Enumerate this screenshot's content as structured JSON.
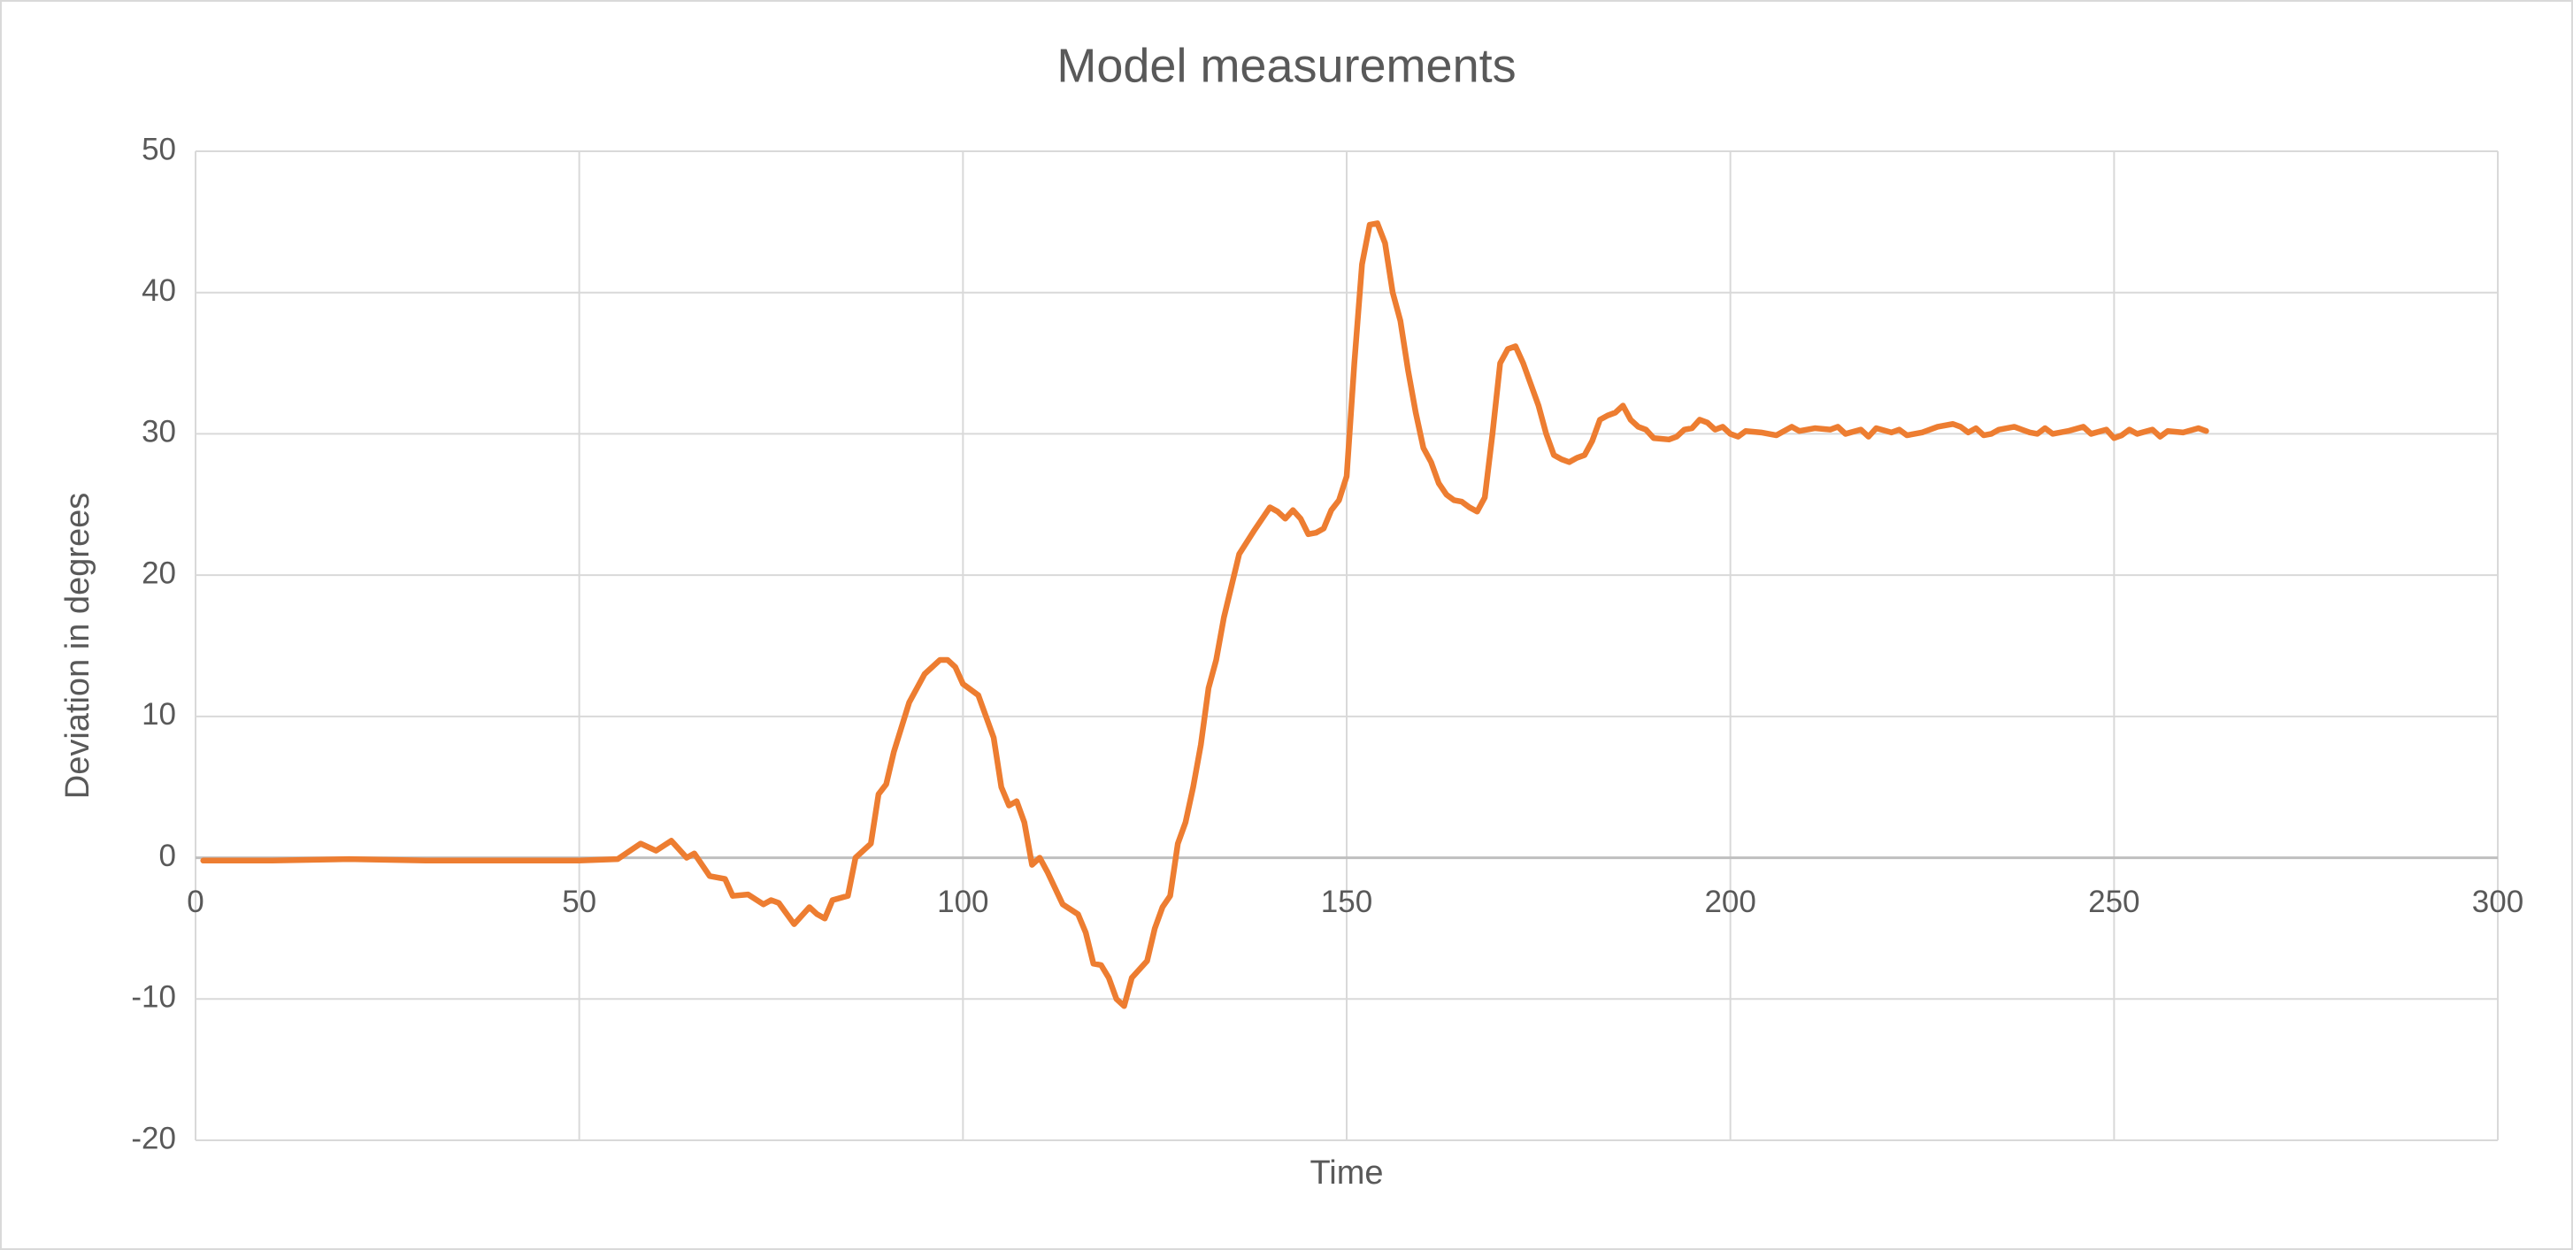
{
  "chart_data": {
    "type": "line",
    "title": "Model measurements",
    "x_label": "Time",
    "y_label": "Deviation in degrees",
    "color": "#ed7d31",
    "grid": true,
    "xlim": [
      0,
      300
    ],
    "xticks": [
      0,
      50,
      100,
      150,
      200,
      250,
      300
    ],
    "ylim": [
      -20,
      50
    ],
    "yticks": [
      -20,
      -10,
      0,
      10,
      20,
      30,
      40,
      50
    ],
    "x": [
      1,
      10,
      20,
      30,
      40,
      50,
      55,
      58,
      60,
      62,
      64,
      65,
      67,
      68,
      69,
      70,
      72,
      74,
      75,
      76,
      78,
      80,
      81,
      82,
      83,
      85,
      86,
      88,
      89,
      90,
      91,
      93,
      95,
      97,
      98,
      99,
      100,
      102,
      104,
      105,
      106,
      107,
      108,
      109,
      110,
      111,
      113,
      115,
      116,
      117,
      118,
      119,
      120,
      121,
      122,
      124,
      125,
      126,
      127,
      128,
      129,
      130,
      131,
      132,
      133,
      134,
      136,
      138,
      140,
      141,
      142,
      143,
      144,
      145,
      146,
      147,
      148,
      149,
      150,
      151,
      152,
      153,
      154,
      155,
      156,
      157,
      158,
      159,
      160,
      161,
      162,
      163,
      164,
      165,
      166,
      167,
      168,
      169,
      170,
      171,
      172,
      173,
      174,
      175,
      176,
      177,
      178,
      179,
      180,
      181,
      182,
      183,
      184,
      185,
      186,
      187,
      188,
      189,
      190,
      192,
      193,
      194,
      195,
      196,
      197,
      198,
      199,
      200,
      201,
      202,
      204,
      206,
      208,
      209,
      211,
      213,
      214,
      215,
      217,
      218,
      219,
      221,
      222,
      223,
      225,
      227,
      229,
      230,
      231,
      232,
      233,
      234,
      235,
      237,
      239,
      240,
      241,
      242,
      244,
      246,
      247,
      249,
      250,
      251,
      252,
      253,
      255,
      256,
      257,
      259,
      261,
      262
    ],
    "values": [
      -0.2,
      -0.2,
      -0.1,
      -0.2,
      -0.2,
      -0.2,
      -0.1,
      1,
      0.5,
      1.2,
      0,
      0.3,
      -1.3,
      -1.4,
      -1.5,
      -2.7,
      -2.6,
      -3.3,
      -3,
      -3.2,
      -4.7,
      -3.5,
      -4,
      -4.3,
      -3,
      -2.7,
      0,
      1,
      4.5,
      5.2,
      7.5,
      11,
      13,
      14,
      14,
      13.5,
      12.3,
      11.5,
      8.5,
      5,
      3.7,
      4,
      2.5,
      -0.5,
      0,
      -1,
      -3.3,
      -4,
      -5.3,
      -7.5,
      -7.6,
      -8.5,
      -10,
      -10.5,
      -8.5,
      -7.3,
      -5,
      -3.5,
      -2.7,
      1,
      2.5,
      5,
      8,
      12,
      14,
      17,
      21.5,
      23.2,
      24.8,
      24.5,
      24,
      24.6,
      24,
      22.9,
      23,
      23.3,
      24.6,
      25.3,
      27,
      35,
      42,
      44.8,
      44.9,
      43.5,
      40,
      38,
      34.5,
      31.5,
      29,
      28,
      26.5,
      25.7,
      25.3,
      25.2,
      24.8,
      24.5,
      25.5,
      30,
      35,
      36,
      36.2,
      35,
      33.5,
      32,
      30,
      28.5,
      28.2,
      28,
      28.3,
      28.5,
      29.5,
      31,
      31.3,
      31.5,
      32,
      31,
      30.5,
      30.3,
      29.7,
      29.6,
      29.8,
      30.3,
      30.4,
      31,
      30.8,
      30.3,
      30.5,
      30,
      29.8,
      30.2,
      30.1,
      29.9,
      30.5,
      30.2,
      30.4,
      30.3,
      30.5,
      30,
      30.3,
      29.8,
      30.4,
      30.1,
      30.3,
      29.9,
      30.1,
      30.5,
      30.7,
      30.5,
      30.1,
      30.4,
      29.9,
      30,
      30.3,
      30.5,
      30.1,
      30,
      30.4,
      30,
      30.2,
      30.5,
      30,
      30.3,
      29.7,
      29.9,
      30.3,
      30,
      30.3,
      29.8,
      30.2,
      30.1,
      30.4,
      30.2
    ]
  }
}
